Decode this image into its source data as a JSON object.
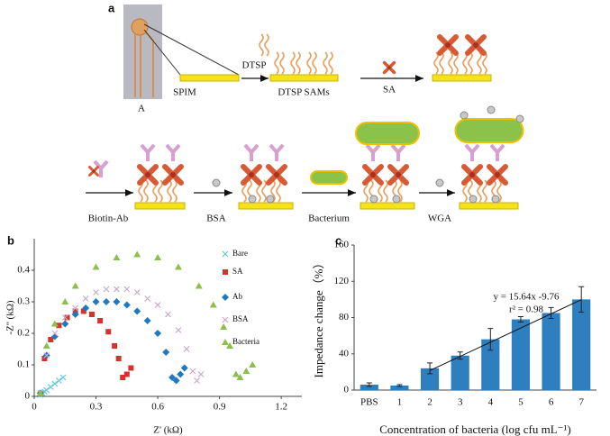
{
  "panel_a": {
    "label": "a",
    "photo_label": "A",
    "steps": [
      "SPIM",
      "DTSP",
      "DTSP SAMs",
      "SA",
      "Biotin-Ab",
      "BSA",
      "Bacterium",
      "WGA"
    ]
  },
  "chart_data": [
    {
      "type": "scatter",
      "panel_label": "b",
      "xlabel": "Z' (kΩ)",
      "ylabel": "-Z'' (kΩ)",
      "xlim": [
        0,
        1.3
      ],
      "ylim": [
        0,
        0.5
      ],
      "xticks": [
        0,
        0.3,
        0.6,
        0.9,
        1.2
      ],
      "yticks": [
        0,
        0.1,
        0.2,
        0.3,
        0.4
      ],
      "series": [
        {
          "name": "Bare",
          "color": "#5cc8d8",
          "marker": "x",
          "x": [
            0.03,
            0.04,
            0.05,
            0.06,
            0.08,
            0.1,
            0.12,
            0.14
          ],
          "values": [
            0.005,
            0.01,
            0.015,
            0.02,
            0.03,
            0.04,
            0.05,
            0.06
          ]
        },
        {
          "name": "SA",
          "color": "#d8312b",
          "marker": "square",
          "x": [
            0.03,
            0.05,
            0.08,
            0.12,
            0.16,
            0.2,
            0.24,
            0.28,
            0.32,
            0.36,
            0.39,
            0.41,
            0.43,
            0.45,
            0.47
          ],
          "values": [
            0.01,
            0.12,
            0.18,
            0.225,
            0.25,
            0.27,
            0.27,
            0.26,
            0.24,
            0.205,
            0.16,
            0.12,
            0.06,
            0.07,
            0.09
          ]
        },
        {
          "name": "Ab",
          "color": "#1f78c0",
          "marker": "diamond",
          "x": [
            0.03,
            0.06,
            0.1,
            0.15,
            0.2,
            0.25,
            0.3,
            0.35,
            0.4,
            0.45,
            0.5,
            0.55,
            0.6,
            0.64,
            0.67,
            0.69,
            0.71,
            0.73
          ],
          "values": [
            0.01,
            0.13,
            0.19,
            0.23,
            0.26,
            0.28,
            0.3,
            0.3,
            0.3,
            0.29,
            0.27,
            0.24,
            0.2,
            0.14,
            0.06,
            0.05,
            0.07,
            0.09
          ]
        },
        {
          "name": "BSA",
          "color": "#c8a8cc",
          "marker": "x",
          "x": [
            0.03,
            0.06,
            0.1,
            0.15,
            0.2,
            0.25,
            0.3,
            0.35,
            0.4,
            0.45,
            0.5,
            0.55,
            0.6,
            0.65,
            0.7,
            0.74,
            0.77,
            0.79,
            0.81
          ],
          "values": [
            0.01,
            0.13,
            0.2,
            0.25,
            0.28,
            0.31,
            0.33,
            0.34,
            0.34,
            0.34,
            0.33,
            0.31,
            0.29,
            0.26,
            0.21,
            0.15,
            0.08,
            0.05,
            0.07
          ]
        },
        {
          "name": "Bacteria",
          "color": "#8cbf4c",
          "marker": "triangle",
          "x": [
            0.03,
            0.06,
            0.1,
            0.15,
            0.2,
            0.3,
            0.4,
            0.5,
            0.6,
            0.7,
            0.8,
            0.87,
            0.92,
            0.95,
            0.98,
            1.0,
            1.03,
            1.06
          ],
          "values": [
            0.01,
            0.16,
            0.23,
            0.3,
            0.35,
            0.41,
            0.44,
            0.45,
            0.44,
            0.41,
            0.35,
            0.29,
            0.22,
            0.16,
            0.07,
            0.06,
            0.08,
            0.1
          ]
        }
      ]
    },
    {
      "type": "bar",
      "panel_label": "c",
      "xlabel": "Concentration of bacteria (log cfu mL⁻¹)",
      "ylabel": "Impedance change（%）",
      "categories": [
        "PBS",
        "1",
        "2",
        "3",
        "4",
        "5",
        "6",
        "7"
      ],
      "values": [
        6,
        5,
        24,
        38,
        56,
        78,
        85,
        100
      ],
      "errors": [
        2,
        1,
        6,
        4,
        12,
        3,
        6,
        14
      ],
      "color": "#2e7fc0",
      "ylim": [
        0,
        160
      ],
      "yticks": [
        0,
        40,
        80,
        120,
        160
      ],
      "trendline": {
        "slope": 15.64,
        "intercept": -9.76,
        "from": 2,
        "to": 7
      },
      "annotations": [
        "y = 15.64x -9.76",
        "r² = 0.98"
      ]
    }
  ]
}
